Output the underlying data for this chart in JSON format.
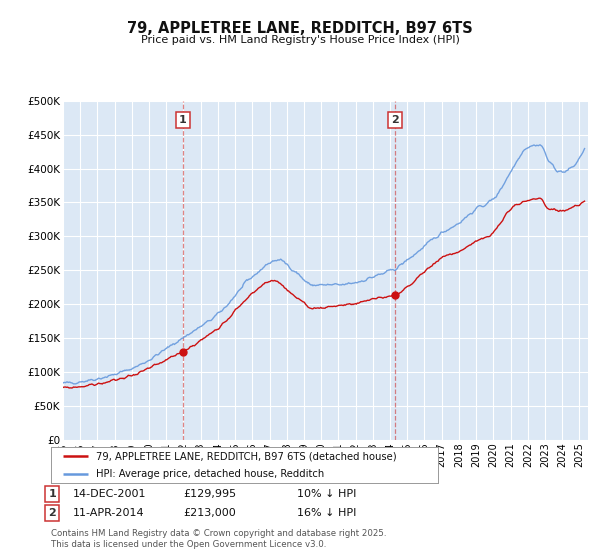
{
  "title": "79, APPLETREE LANE, REDDITCH, B97 6TS",
  "subtitle": "Price paid vs. HM Land Registry's House Price Index (HPI)",
  "bg_color": "#ffffff",
  "plot_bg_color": "#dce8f5",
  "grid_color": "#ffffff",
  "ylim": [
    0,
    500000
  ],
  "yticks": [
    0,
    50000,
    100000,
    150000,
    200000,
    250000,
    300000,
    350000,
    400000,
    450000,
    500000
  ],
  "ytick_labels": [
    "£0",
    "£50K",
    "£100K",
    "£150K",
    "£200K",
    "£250K",
    "£300K",
    "£350K",
    "£400K",
    "£450K",
    "£500K"
  ],
  "marker1_x": 2001.95,
  "marker1_y": 129995,
  "marker2_x": 2014.28,
  "marker2_y": 213000,
  "vline_color": "#cc3333",
  "vline_alpha": 0.6,
  "legend_line1_color": "#cc1111",
  "legend_line1_label": "79, APPLETREE LANE, REDDITCH, B97 6TS (detached house)",
  "legend_line2_color": "#6699dd",
  "legend_line2_label": "HPI: Average price, detached house, Redditch",
  "annotation1_date": "14-DEC-2001",
  "annotation1_price": "£129,995",
  "annotation1_hpi": "10% ↓ HPI",
  "annotation2_date": "11-APR-2014",
  "annotation2_price": "£213,000",
  "annotation2_hpi": "16% ↓ HPI",
  "footer": "Contains HM Land Registry data © Crown copyright and database right 2025.\nThis data is licensed under the Open Government Licence v3.0.",
  "xmin": 1995,
  "xmax": 2025.5
}
